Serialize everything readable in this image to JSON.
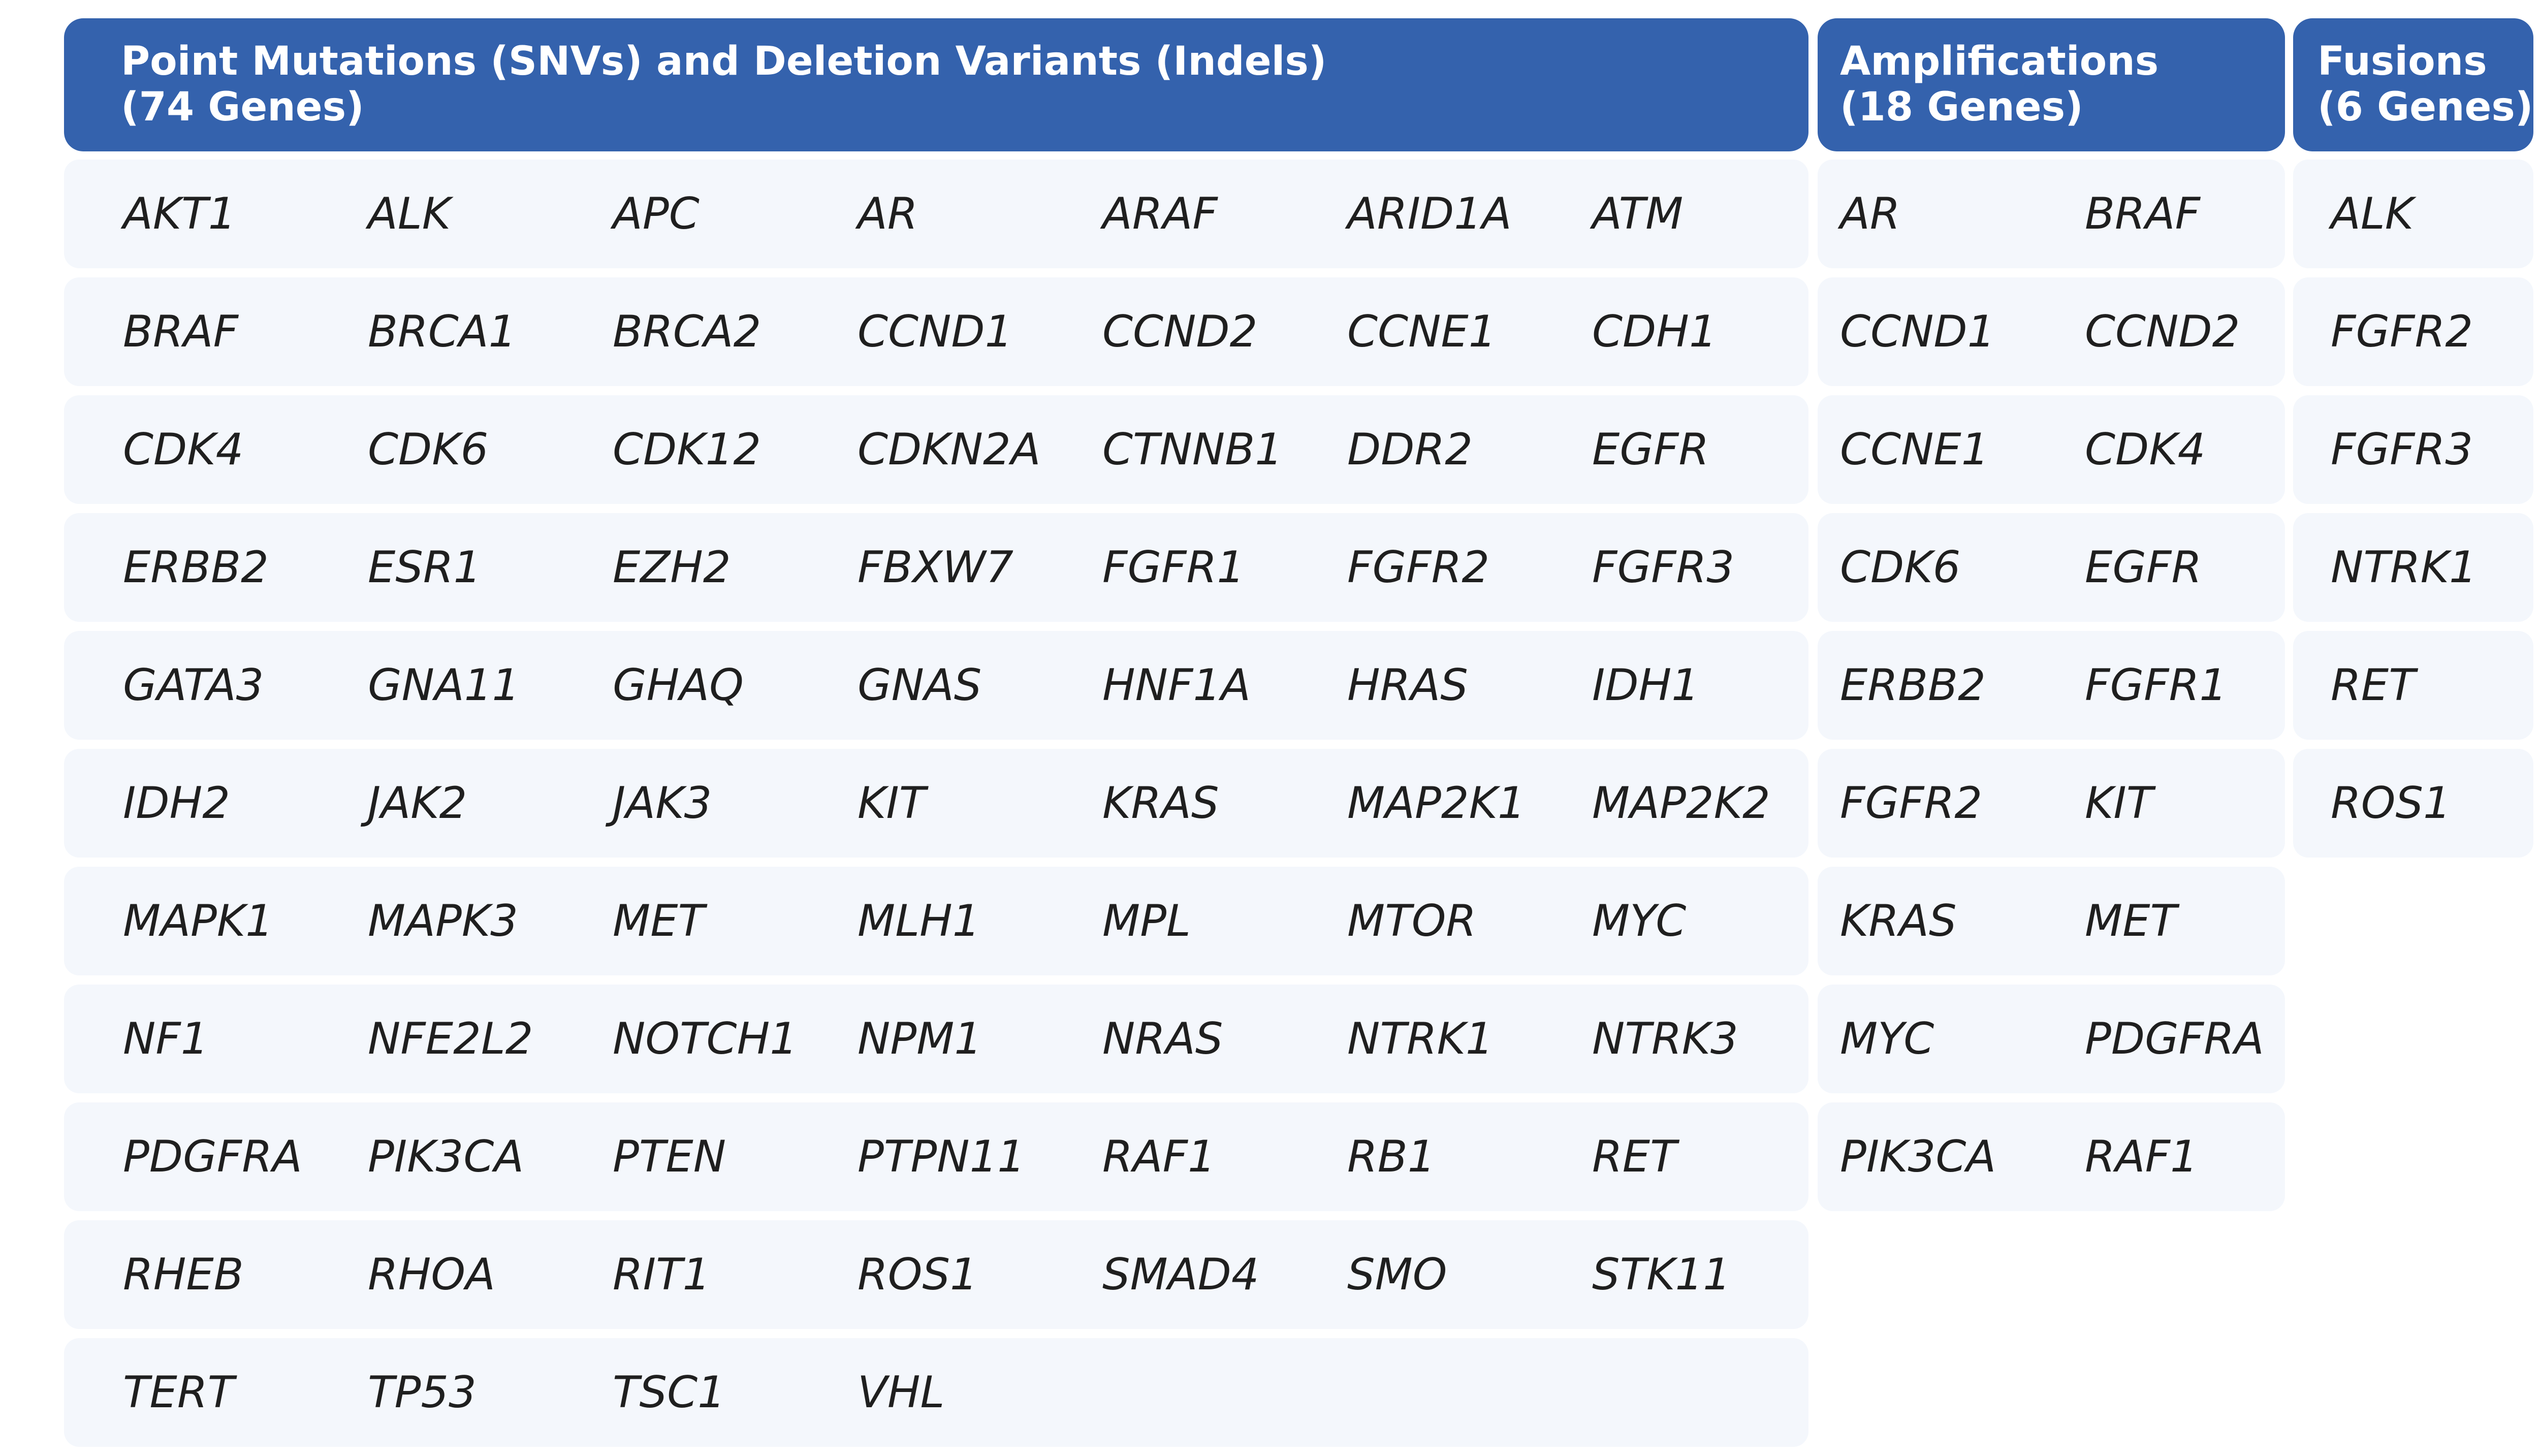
{
  "panels": {
    "snv": {
      "title_line1": "Point Mutations (SNVs) and Deletion Variants (Indels)",
      "title_line2": "(74 Genes)",
      "rows": [
        [
          "AKT1",
          "ALK",
          "APC",
          "AR",
          "ARAF",
          "ARID1A",
          "ATM"
        ],
        [
          "BRAF",
          "BRCA1",
          "BRCA2",
          "CCND1",
          "CCND2",
          "CCNE1",
          "CDH1"
        ],
        [
          "CDK4",
          "CDK6",
          "CDK12",
          "CDKN2A",
          "CTNNB1",
          "DDR2",
          "EGFR"
        ],
        [
          "ERBB2",
          "ESR1",
          "EZH2",
          "FBXW7",
          "FGFR1",
          "FGFR2",
          "FGFR3"
        ],
        [
          "GATA3",
          "GNA11",
          "GHAQ",
          "GNAS",
          "HNF1A",
          "HRAS",
          "IDH1"
        ],
        [
          "IDH2",
          "JAK2",
          "JAK3",
          "KIT",
          "KRAS",
          "MAP2K1",
          "MAP2K2"
        ],
        [
          "MAPK1",
          "MAPK3",
          "MET",
          "MLH1",
          "MPL",
          "MTOR",
          "MYC"
        ],
        [
          "NF1",
          "NFE2L2",
          "NOTCH1",
          "NPM1",
          "NRAS",
          "NTRK1",
          "NTRK3"
        ],
        [
          "PDGFRA",
          "PIK3CA",
          "PTEN",
          "PTPN11",
          "RAF1",
          "RB1",
          "RET"
        ],
        [
          "RHEB",
          "RHOA",
          "RIT1",
          "ROS1",
          "SMAD4",
          "SMO",
          "STK11"
        ],
        [
          "TERT",
          "TP53",
          "TSC1",
          "VHL"
        ]
      ]
    },
    "amp": {
      "title_line1": "Amplifications",
      "title_line2": "(18 Genes)",
      "rows": [
        [
          "AR",
          "BRAF"
        ],
        [
          "CCND1",
          "CCND2"
        ],
        [
          "CCNE1",
          "CDK4"
        ],
        [
          "CDK6",
          "EGFR"
        ],
        [
          "ERBB2",
          "FGFR1"
        ],
        [
          "FGFR2",
          "KIT"
        ],
        [
          "KRAS",
          "MET"
        ],
        [
          "MYC",
          "PDGFRA"
        ],
        [
          "PIK3CA",
          "RAF1"
        ]
      ]
    },
    "fus": {
      "title_line1": "Fusions",
      "title_line2": "(6 Genes)",
      "rows": [
        [
          "ALK"
        ],
        [
          "FGFR2"
        ],
        [
          "FGFR3"
        ],
        [
          "NTRK1"
        ],
        [
          "RET"
        ],
        [
          "ROS1"
        ]
      ]
    }
  }
}
